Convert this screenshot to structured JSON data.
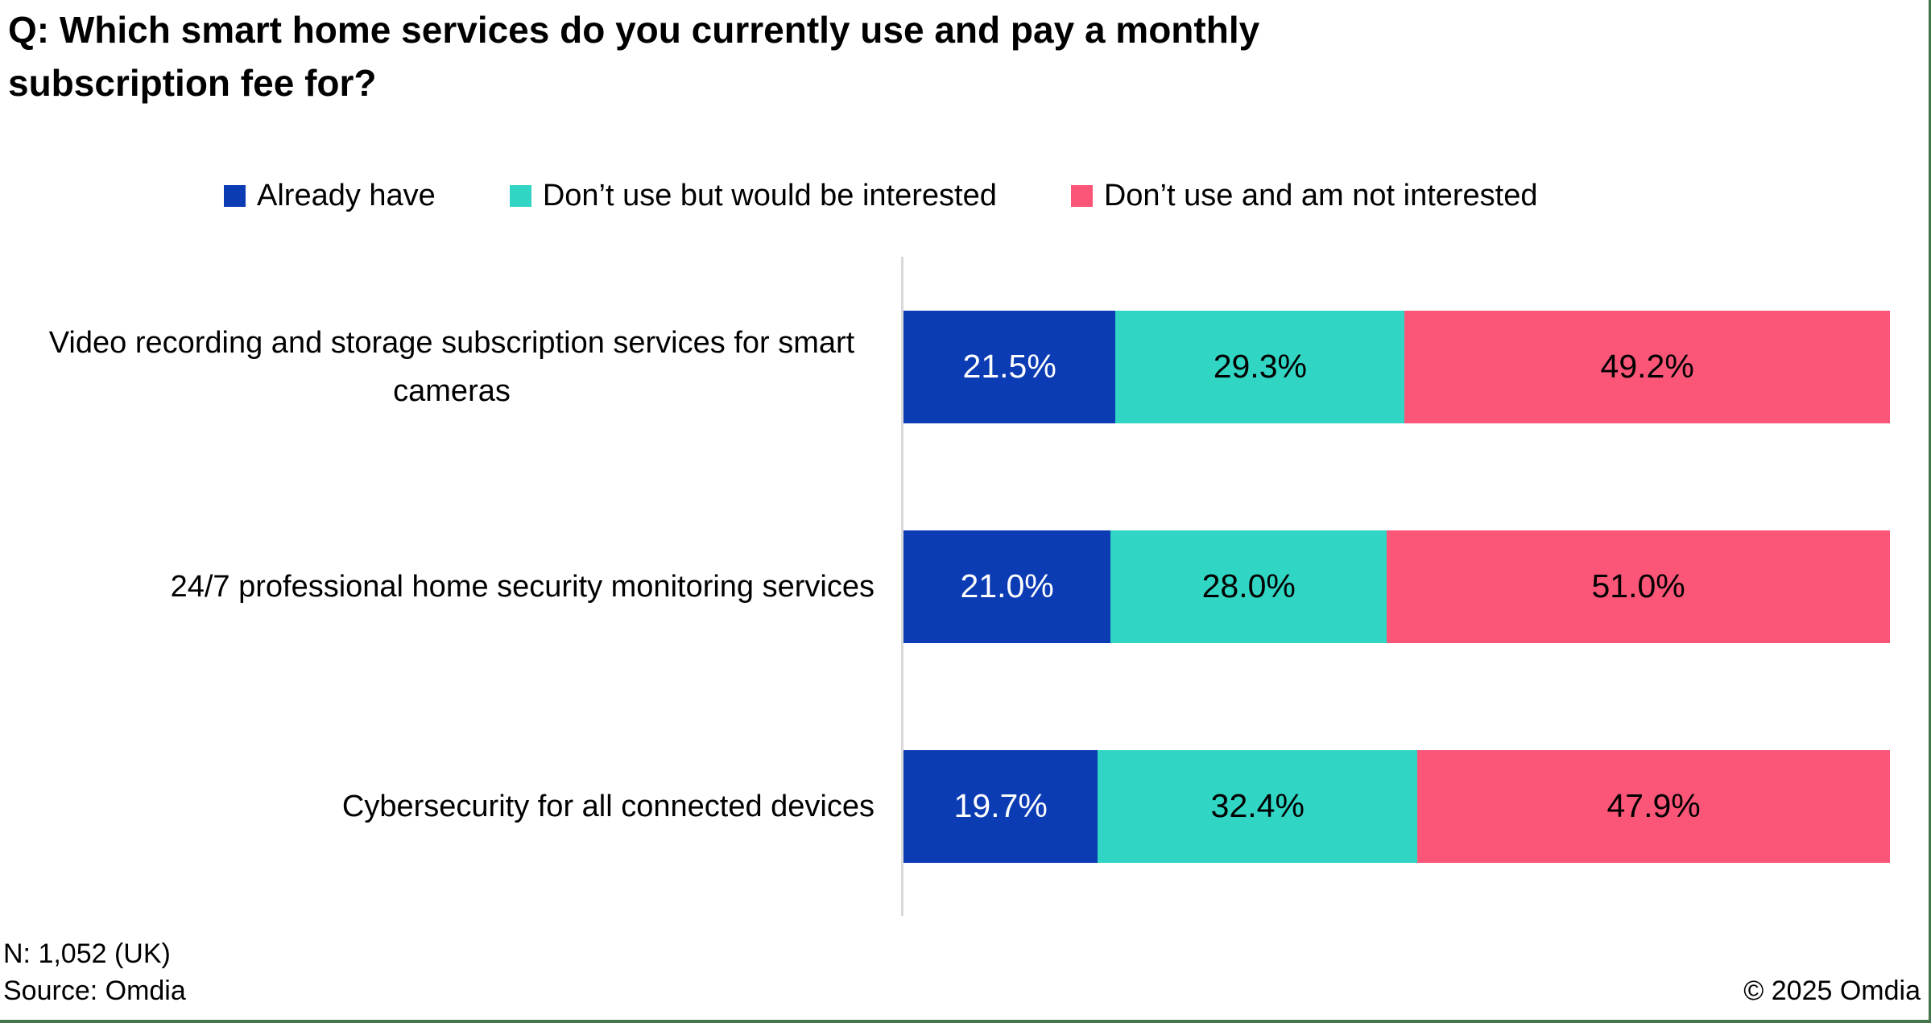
{
  "chart_data": {
    "type": "bar",
    "orientation": "horizontal",
    "stacked": true,
    "title": "Q: Which smart home services do you currently use and pay a monthly subscription fee for?",
    "categories": [
      "Video recording and storage subscription services for smart cameras",
      "24/7 professional home security monitoring services",
      "Cybersecurity for all connected devices"
    ],
    "series": [
      {
        "name": "Already have",
        "color": "#0c3cb4",
        "text_color": "#ffffff",
        "values": [
          21.5,
          21.0,
          19.7
        ]
      },
      {
        "name": "Don’t use but would be interested",
        "color": "#31d5c4",
        "text_color": "#000000",
        "values": [
          29.3,
          28.0,
          32.4
        ]
      },
      {
        "name": "Don’t use and am not interested",
        "color": "#fb5577",
        "text_color": "#000000",
        "values": [
          49.2,
          51.0,
          47.9
        ]
      }
    ],
    "data_labels": [
      [
        "21.5%",
        "29.3%",
        "49.2%"
      ],
      [
        "21.0%",
        "28.0%",
        "51.0%"
      ],
      [
        "19.7%",
        "32.4%",
        "47.9%"
      ]
    ],
    "xlim": [
      0,
      100
    ],
    "value_unit": "%",
    "legend_position": "top",
    "grid": false
  },
  "footer": {
    "sample_note": "N: 1,052 (UK)",
    "source_note": "Source: Omdia",
    "copyright_note": "© 2025 Omdia"
  },
  "colors": {
    "background": "#ffffff",
    "axis_line": "#d9d9d9",
    "accent_border": "#447449"
  }
}
